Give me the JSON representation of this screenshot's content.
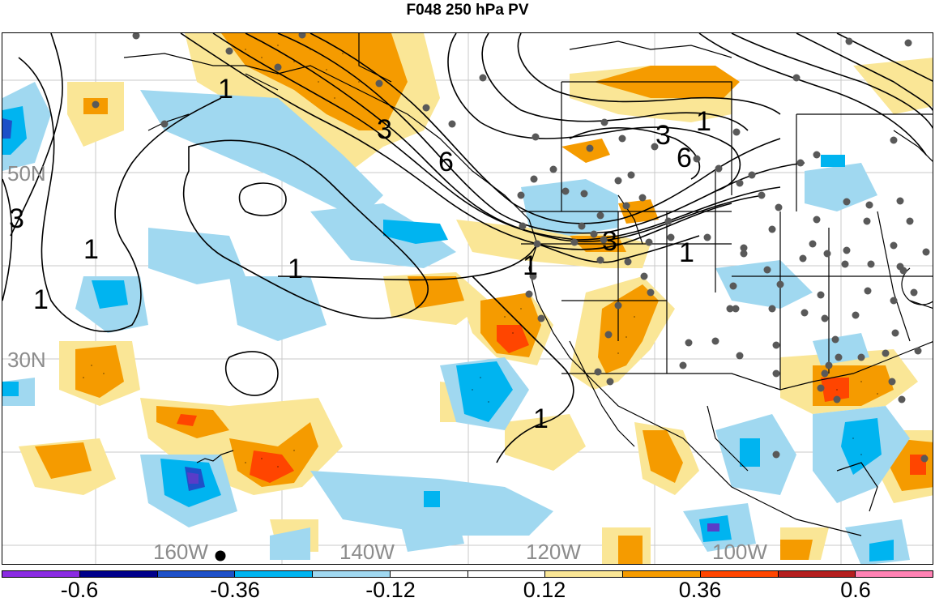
{
  "title": "F048 250 hPa PV",
  "lat_labels": [
    "50N",
    "30N"
  ],
  "lon_labels": [
    "160W",
    "140W",
    "120W",
    "100W"
  ],
  "contour_labels": [
    "1",
    "1",
    "1",
    "1",
    "1",
    "1",
    "1",
    "1",
    "3",
    "3",
    "3",
    "3",
    "6",
    "6"
  ],
  "colorbar": {
    "colors": [
      "#8a2be2",
      "#00008b",
      "#1e50c8",
      "#00b4f0",
      "#a0d8f0",
      "#ffffff",
      "#ffffff",
      "#fae696",
      "#f59b00",
      "#ff4500",
      "#b41e1e",
      "#ff82b4"
    ],
    "tick_labels": [
      "-0.6",
      "-0.36",
      "-0.12",
      "0.12",
      "0.36",
      "0.6"
    ]
  },
  "colors": {
    "lat_lon_label": "#8c8c8c",
    "station_dot": "#595959"
  }
}
